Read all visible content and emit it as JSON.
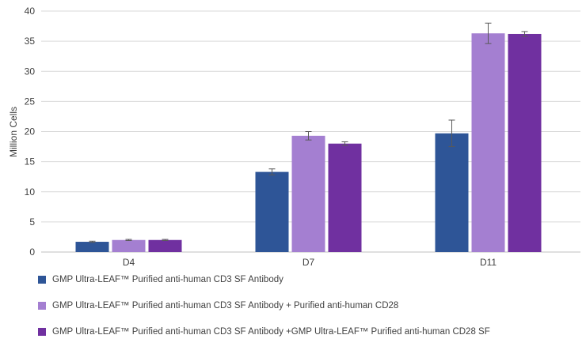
{
  "chart_data": {
    "type": "bar",
    "title": "",
    "xlabel": "",
    "ylabel": "Million Cells",
    "ylim": [
      0,
      40
    ],
    "yticks": [
      0,
      5,
      10,
      15,
      20,
      25,
      30,
      35,
      40
    ],
    "grid": true,
    "legend_position": "bottom",
    "categories": [
      "D4",
      "D7",
      "D11"
    ],
    "series": [
      {
        "name": "GMP Ultra-LEAF™ Purified anti-human CD3 SF Antibody",
        "color": "#2e5597",
        "values": [
          1.7,
          13.3,
          19.7
        ],
        "errors": [
          0.1,
          0.5,
          2.2
        ]
      },
      {
        "name": "GMP Ultra-LEAF™ Purified anti-human CD3 SF Antibody +  Purified anti-human CD28",
        "color": "#a47fd1",
        "values": [
          2.0,
          19.3,
          36.3
        ],
        "errors": [
          0.1,
          0.7,
          1.7
        ]
      },
      {
        "name": "GMP Ultra-LEAF™ Purified anti-human CD3 SF Antibody +GMP Ultra-LEAF™ Purified anti-human CD28 SF",
        "color": "#7030a0",
        "values": [
          2.0,
          18.0,
          36.2
        ],
        "errors": [
          0.1,
          0.3,
          0.4
        ]
      }
    ]
  }
}
